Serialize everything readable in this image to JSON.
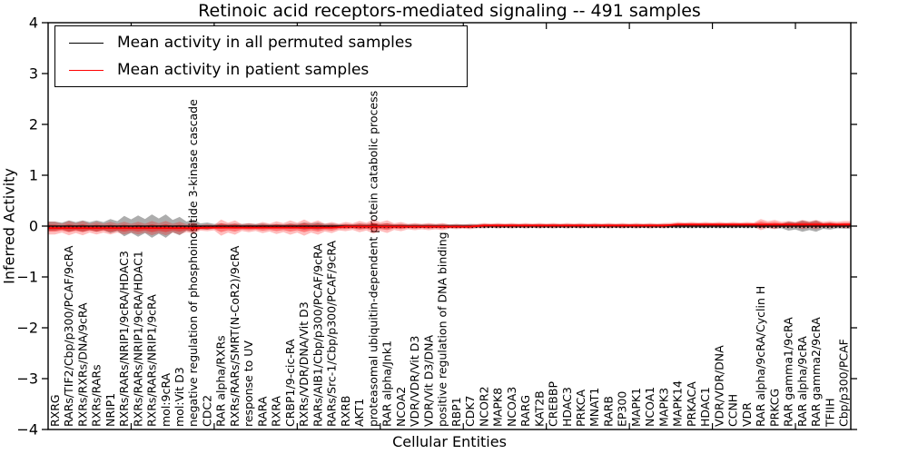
{
  "title": "Retinoic acid receptors-mediated signaling -- 491 samples",
  "legend": {
    "position": "upper left",
    "entries": [
      {
        "label": "Mean activity in all permuted samples",
        "color": "#000000"
      },
      {
        "label": "Mean activity in patient samples",
        "color": "#ff0000"
      }
    ]
  },
  "colors": {
    "background": "#ffffff",
    "frame": "#000000",
    "permuted_line": "#000000",
    "patient_line": "#ff0000",
    "permuted_fill": "#808080",
    "patient_fill": "#ff0000"
  },
  "chart_data": {
    "type": "area",
    "variant": "violin-band",
    "title": "Retinoic acid receptors-mediated signaling -- 491 samples",
    "xlabel": "Cellular Entities",
    "ylabel": "Inferred Activity",
    "ylim": [
      -4,
      4
    ],
    "yticks": [
      4,
      3,
      2,
      1,
      0,
      -1,
      -2,
      -3,
      -4
    ],
    "xticks_index_scale": [
      6,
      12,
      18,
      24,
      30,
      36,
      42,
      48,
      54
    ],
    "grid": false,
    "legend_position": "upper left",
    "categories": [
      "RXRG",
      "RARs/TIF2/Cbp/p300/PCAF/9cRA",
      "RXRs/RXRs/DNA/9cRA",
      "RXRs/RARs",
      "NRIP1",
      "RXRs/RARs/NRIP1/9cRA/HDAC3",
      "RXRs/RARs/NRIP1/9cRA/HDAC1",
      "RXRs/RARs/NRIP1/9cRA",
      "mol:9cRA",
      "mol:Vit D3",
      "negative regulation of phosphoinositide 3-kinase cascade",
      "CDC2",
      "RAR alpha/RXRs",
      "RXRs/RARs/SMRT(N-CoR2)/9cRA",
      "response to UV",
      "RARA",
      "RXRA",
      "CRBP1/9-cic-RA",
      "RXRs/VDR/DNA/Vit D3",
      "RARs/AIB1/Cbp/p300/PCAF/9cRA",
      "RARs/Src-1/Cbp/p300/PCAF/9cRA",
      "RXRB",
      "AKT1",
      "proteasomal ubiquitin-dependent protein catabolic process",
      "RAR alpha/Jnk1",
      "NCOA2",
      "VDR/VDR/Vit D3",
      "VDR/Vit D3/DNA",
      "positive regulation of DNA binding",
      "RBP1",
      "CDK7",
      "NCOR2",
      "MAPK8",
      "NCOA3",
      "RARG",
      "KAT2B",
      "CREBBP",
      "HDAC3",
      "PRKCA",
      "MNAT1",
      "RARB",
      "EP300",
      "MAPK1",
      "NCOA1",
      "MAPK3",
      "MAPK14",
      "PRKACA",
      "HDAC1",
      "VDR/VDR/DNA",
      "CCNH",
      "VDR",
      "RAR alpha/9cRA/Cyclin H",
      "PRKCG",
      "RAR gamma1/9cRA",
      "RAR alpha/9cRA",
      "RAR gamma2/9cRA",
      "TFIIH",
      "Cbp/p300/PCAF"
    ],
    "series": [
      {
        "name": "Mean activity in all permuted samples",
        "color": "#000000",
        "mean": 0,
        "spread_halfwidth": [
          0.09,
          0.11,
          0.11,
          0.11,
          0.14,
          0.2,
          0.21,
          0.23,
          0.23,
          0.18,
          0.13,
          0.07,
          0.05,
          0.05,
          0.05,
          0.05,
          0.04,
          0.05,
          0.07,
          0.07,
          0.05,
          0.04,
          0.05,
          0.05,
          0.05,
          0.04,
          0.04,
          0.04,
          0.04,
          0.04,
          0.04,
          0.04,
          0.04,
          0.04,
          0.04,
          0.04,
          0.04,
          0.04,
          0.04,
          0.04,
          0.04,
          0.04,
          0.04,
          0.04,
          0.04,
          0.04,
          0.04,
          0.04,
          0.04,
          0.04,
          0.04,
          0.04,
          0.05,
          0.09,
          0.11,
          0.11,
          0.07,
          0.05
        ]
      },
      {
        "name": "Mean activity in patient samples",
        "color": "#ff0000",
        "mean_offsets": [
          -0.04,
          -0.04,
          -0.04,
          -0.04,
          -0.04,
          -0.04,
          -0.04,
          -0.04,
          -0.04,
          -0.04,
          -0.04,
          -0.03,
          -0.03,
          -0.03,
          -0.03,
          -0.03,
          -0.03,
          -0.03,
          -0.03,
          -0.03,
          -0.03,
          -0.01,
          -0.01,
          -0.01,
          -0.01,
          -0.01,
          -0.01,
          -0.01,
          -0.01,
          -0.01,
          -0.01,
          0.01,
          0.01,
          0.01,
          0.01,
          0.01,
          0.01,
          0.01,
          0.01,
          0.01,
          0.01,
          0.01,
          0.01,
          0.01,
          0.01,
          0.03,
          0.03,
          0.03,
          0.03,
          0.03,
          0.03,
          0.03,
          0.03,
          0.03,
          0.03,
          0.03,
          0.03,
          0.03
        ],
        "spread_halfwidth": [
          0.125,
          0.14,
          0.14,
          0.125,
          0.125,
          0.125,
          0.125,
          0.14,
          0.14,
          0.125,
          0.11,
          0.07,
          0.16,
          0.14,
          0.09,
          0.11,
          0.125,
          0.14,
          0.16,
          0.14,
          0.11,
          0.09,
          0.11,
          0.14,
          0.125,
          0.09,
          0.07,
          0.07,
          0.07,
          0.05,
          0.05,
          0.05,
          0.05,
          0.05,
          0.05,
          0.05,
          0.05,
          0.05,
          0.05,
          0.05,
          0.05,
          0.05,
          0.05,
          0.05,
          0.05,
          0.05,
          0.05,
          0.05,
          0.05,
          0.05,
          0.05,
          0.11,
          0.09,
          0.07,
          0.09,
          0.09,
          0.07,
          0.07
        ]
      }
    ]
  }
}
